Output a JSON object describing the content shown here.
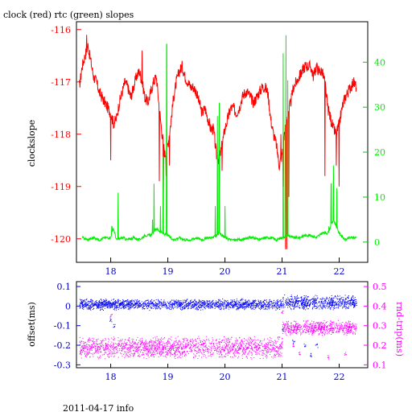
{
  "title": "clock (red) rtc (green) slopes",
  "footer": "2011-04-17 info",
  "chart_data": [
    {
      "type": "line",
      "panel": "top",
      "title": "clock (red) rtc (green) slopes",
      "xlabel": "",
      "xlim": [
        17.4,
        22.5
      ],
      "x_ticks": [
        18,
        19,
        20,
        21,
        22
      ],
      "x_tick_labels": [
        "18",
        "19",
        "20",
        "21",
        "22"
      ],
      "ylabel": "clockslope",
      "ylim": [
        -120.45,
        -115.85
      ],
      "y_ticks": [
        -116,
        -117,
        -118,
        -119,
        -120
      ],
      "y_tick_labels": [
        "-116",
        "-117",
        "-118",
        "-119",
        "-120"
      ],
      "y2lim": [
        -4.5,
        49
      ],
      "y2_ticks": [
        0,
        10,
        20,
        30,
        40
      ],
      "y2_tick_labels": [
        "0",
        "10",
        "20",
        "30",
        "40"
      ],
      "grid": false,
      "colors": {
        "clock": "#ff0000",
        "rtc": "#00ee00",
        "axis_left": "#ff0000",
        "axis_right": "#00ee00"
      },
      "series": [
        {
          "name": "clock",
          "axis": "left",
          "x": [
            17.45,
            17.5,
            17.55,
            17.6,
            17.65,
            17.7,
            17.75,
            17.8,
            17.85,
            17.9,
            17.95,
            18.0,
            18.05,
            18.1,
            18.15,
            18.2,
            18.25,
            18.3,
            18.35,
            18.4,
            18.45,
            18.5,
            18.55,
            18.6,
            18.65,
            18.7,
            18.75,
            18.8,
            18.85,
            18.9,
            18.95,
            19.0,
            19.05,
            19.1,
            19.15,
            19.2,
            19.25,
            19.3,
            19.35,
            19.4,
            19.45,
            19.5,
            19.55,
            19.6,
            19.65,
            19.7,
            19.75,
            19.8,
            19.85,
            19.9,
            19.95,
            20.0,
            20.05,
            20.1,
            20.15,
            20.2,
            20.25,
            20.3,
            20.35,
            20.4,
            20.45,
            20.5,
            20.55,
            20.6,
            20.65,
            20.7,
            20.75,
            20.8,
            20.85,
            20.9,
            20.95,
            21.0,
            21.05,
            21.1,
            21.15,
            21.2,
            21.25,
            21.3,
            21.35,
            21.4,
            21.45,
            21.5,
            21.55,
            21.6,
            21.65,
            21.7,
            21.75,
            21.8,
            21.85,
            21.9,
            21.95,
            22.0,
            22.05,
            22.1,
            22.15,
            22.2,
            22.25,
            22.3
          ],
          "y": [
            -117.1,
            -116.7,
            -116.5,
            -116.3,
            -116.6,
            -116.9,
            -117.0,
            -117.2,
            -117.3,
            -117.4,
            -117.5,
            -117.6,
            -117.8,
            -117.7,
            -117.4,
            -117.2,
            -117.0,
            -117.1,
            -117.3,
            -117.1,
            -116.9,
            -116.8,
            -117.0,
            -117.3,
            -117.4,
            -117.2,
            -117.0,
            -116.9,
            -117.5,
            -118.0,
            -118.4,
            -118.2,
            -117.8,
            -117.3,
            -117.0,
            -116.8,
            -116.7,
            -116.9,
            -117.0,
            -117.1,
            -117.1,
            -117.2,
            -117.4,
            -117.6,
            -117.5,
            -117.7,
            -117.9,
            -117.9,
            -118.4,
            -118.5,
            -118.2,
            -117.9,
            -117.7,
            -117.5,
            -117.5,
            -117.6,
            -117.5,
            -117.3,
            -117.2,
            -117.2,
            -117.3,
            -117.4,
            -117.3,
            -117.2,
            -117.1,
            -117.1,
            -117.2,
            -117.7,
            -118.0,
            -118.2,
            -118.6,
            -118.4,
            -117.9,
            -117.6,
            -117.4,
            -117.1,
            -117.0,
            -116.9,
            -116.8,
            -116.7,
            -116.7,
            -116.7,
            -116.9,
            -116.7,
            -116.8,
            -116.8,
            -117.0,
            -117.5,
            -117.7,
            -117.9,
            -118.0,
            -117.8,
            -117.5,
            -117.3,
            -117.2,
            -117.1,
            -117.0,
            -117.1
          ],
          "spikes": [
            [
              17.58,
              -116.1
            ],
            [
              18.0,
              -118.5
            ],
            [
              18.55,
              -116.4
            ],
            [
              18.85,
              -118.9
            ],
            [
              18.92,
              -119.6
            ],
            [
              18.97,
              -118.8
            ],
            [
              19.03,
              -118.6
            ],
            [
              19.9,
              -119.0
            ],
            [
              19.95,
              -118.7
            ],
            [
              20.98,
              -118.0
            ],
            [
              21.02,
              -119.0
            ],
            [
              21.06,
              -120.2
            ],
            [
              21.08,
              -120.2
            ],
            [
              21.12,
              -119.2
            ],
            [
              21.75,
              -118.8
            ],
            [
              21.95,
              -118.6
            ],
            [
              22.0,
              -119.0
            ]
          ]
        },
        {
          "name": "rtc",
          "axis": "right",
          "x": [
            17.5,
            17.6,
            17.7,
            17.8,
            17.9,
            18.0,
            18.05,
            18.1,
            18.2,
            18.3,
            18.4,
            18.5,
            18.6,
            18.7,
            18.8,
            18.9,
            19.0,
            19.1,
            19.2,
            19.3,
            19.4,
            19.5,
            19.6,
            19.7,
            19.8,
            19.9,
            20.0,
            20.1,
            20.2,
            20.3,
            20.4,
            20.5,
            20.6,
            20.7,
            20.8,
            20.9,
            21.0,
            21.1,
            21.2,
            21.3,
            21.4,
            21.5,
            21.6,
            21.7,
            21.8,
            21.9,
            22.0,
            22.1,
            22.2,
            22.3
          ],
          "y": [
            1,
            0.5,
            1,
            0.5,
            1,
            1,
            3,
            0.5,
            1,
            0.5,
            1,
            0.5,
            1.5,
            1.5,
            3,
            2,
            1.5,
            0.5,
            1,
            0.5,
            0.5,
            1,
            0.5,
            1,
            1,
            2,
            1,
            0.5,
            0.5,
            0.5,
            1,
            1,
            0.5,
            1,
            1,
            0.5,
            1,
            1.5,
            1,
            1,
            1.5,
            1.5,
            1,
            2,
            2,
            5,
            2,
            0.5,
            1,
            1
          ],
          "spikes": [
            [
              18.02,
              3.5
            ],
            [
              18.13,
              11
            ],
            [
              18.73,
              5
            ],
            [
              18.76,
              13
            ],
            [
              18.87,
              8
            ],
            [
              18.92,
              19
            ],
            [
              18.98,
              44
            ],
            [
              19.83,
              8
            ],
            [
              19.87,
              28
            ],
            [
              19.9,
              31
            ],
            [
              20.0,
              8
            ],
            [
              21.02,
              42
            ],
            [
              21.07,
              46
            ],
            [
              21.1,
              36
            ],
            [
              21.82,
              3.5
            ],
            [
              21.86,
              13
            ],
            [
              21.9,
              17
            ],
            [
              21.96,
              12
            ]
          ]
        }
      ]
    },
    {
      "type": "scatter",
      "panel": "bottom",
      "xlim": [
        17.4,
        22.5
      ],
      "x_ticks": [
        18,
        19,
        20,
        21,
        22
      ],
      "x_tick_labels": [
        "18",
        "19",
        "20",
        "21",
        "22"
      ],
      "ylabel": "offset(ms)",
      "ylim": [
        -0.315,
        0.125
      ],
      "y_ticks": [
        0.1,
        0,
        -0.1,
        -0.2,
        -0.3
      ],
      "y_tick_labels": [
        "0.1",
        "0",
        "-0.1",
        "-0.2",
        "-0.3"
      ],
      "y2label": "rnd-trip(ms)",
      "y2lim": [
        0.085,
        0.525
      ],
      "y2_ticks": [
        0.5,
        0.4,
        0.3,
        0.2,
        0.1
      ],
      "y2_tick_labels": [
        "0.5",
        "0.4",
        "0.3",
        "0.2",
        "0.1"
      ],
      "grid": false,
      "colors": {
        "offset": "#0000ff",
        "rnd_trip": "#ff00ff"
      },
      "series": [
        {
          "name": "offset(ms)",
          "axis": "left",
          "segments": [
            {
              "x": [
                17.45,
                21.0
              ],
              "center": 0.01,
              "spread": 0.03
            },
            {
              "x": [
                21.0,
                22.3
              ],
              "center": 0.02,
              "spread": 0.04
            }
          ],
          "spikes": [
            [
              18.0,
              -0.07
            ],
            [
              18.05,
              -0.1
            ],
            [
              21.0,
              -0.12
            ],
            [
              21.2,
              -0.18
            ],
            [
              21.4,
              -0.2
            ],
            [
              21.5,
              -0.25
            ],
            [
              21.6,
              -0.2
            ]
          ]
        },
        {
          "name": "rnd-trip(ms)",
          "axis": "right",
          "segments": [
            {
              "x": [
                17.45,
                21.0
              ],
              "center": 0.19,
              "spread": 0.06
            },
            {
              "x": [
                21.0,
                22.3
              ],
              "center": 0.29,
              "spread": 0.04
            }
          ],
          "spikes": [
            [
              18.0,
              0.35
            ],
            [
              21.0,
              0.37
            ],
            [
              21.2,
              0.2
            ],
            [
              21.3,
              0.16
            ],
            [
              21.8,
              0.14
            ],
            [
              22.1,
              0.16
            ]
          ]
        }
      ]
    }
  ]
}
